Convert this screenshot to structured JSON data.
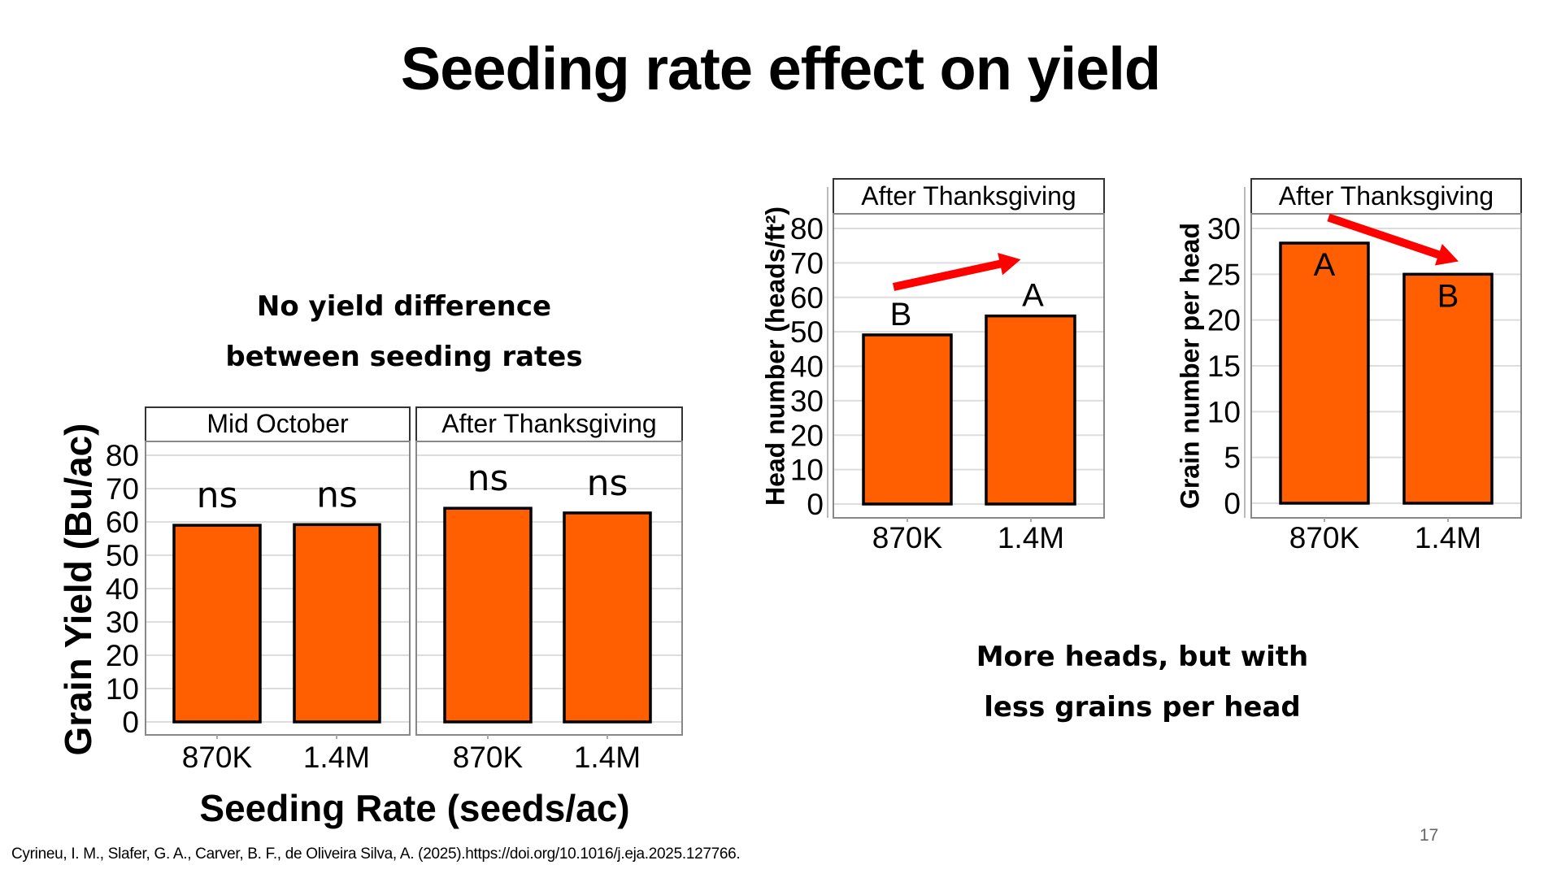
{
  "slide": {
    "title": "Seeding rate effect on yield",
    "callout_left": [
      "No yield difference",
      "between seeding rates"
    ],
    "callout_right": [
      "More heads, but with",
      "less grains per head"
    ],
    "citation": "Cyrineu, I. M., Slafer, G. A., Carver, B. F., de Oliveira Silva, A. (2025).https://doi.org/10.1016/j.eja.2025.127766.",
    "page_number": "17"
  },
  "colors": {
    "bar_fill": "#FF5F00",
    "bar_stroke": "#000000",
    "grid": "#DDDDDD",
    "panel_border": "#555555",
    "arrow": "#FF0000"
  },
  "chart_data": [
    {
      "type": "bar",
      "id": "grain-yield",
      "title": "",
      "xlabel": "Seeding Rate (seeds/ac)",
      "ylabel": "Grain Yield (Bu/ac)",
      "ylim": [
        0,
        80
      ],
      "yticks": [
        0,
        10,
        20,
        30,
        40,
        50,
        60,
        70,
        80
      ],
      "grid": true,
      "categories": [
        "870K",
        "1.4M"
      ],
      "facets": [
        {
          "name": "Mid October",
          "values": [
            59.0,
            59.2
          ],
          "labels": [
            "ns",
            "ns"
          ]
        },
        {
          "name": "After Thanksgiving",
          "values": [
            64.1,
            62.7
          ],
          "labels": [
            "ns",
            "ns"
          ]
        }
      ]
    },
    {
      "type": "bar",
      "id": "head-number",
      "title": "",
      "xlabel": "",
      "ylabel": "Head number (heads/ft²)",
      "ylim": [
        0,
        80
      ],
      "yticks": [
        0,
        10,
        20,
        30,
        40,
        50,
        60,
        70,
        80
      ],
      "grid": true,
      "categories": [
        "870K",
        "1.4M"
      ],
      "facets": [
        {
          "name": "After Thanksgiving",
          "values": [
            49.1,
            54.6
          ],
          "labels": [
            "B",
            "A"
          ]
        }
      ],
      "annotation": {
        "type": "arrow",
        "direction": "increase",
        "from_category": "870K",
        "to_category": "1.4M",
        "from_y": 63,
        "to_y": 71
      }
    },
    {
      "type": "bar",
      "id": "grain-per-head",
      "title": "",
      "xlabel": "",
      "ylabel": "Grain number per head",
      "ylim": [
        0,
        30
      ],
      "yticks": [
        0,
        5,
        10,
        15,
        20,
        25,
        30
      ],
      "grid": true,
      "categories": [
        "870K",
        "1.4M"
      ],
      "facets": [
        {
          "name": "After Thanksgiving",
          "values": [
            28.4,
            25.0
          ],
          "labels": [
            "A",
            "B"
          ]
        }
      ],
      "annotation": {
        "type": "arrow",
        "direction": "decrease",
        "from_category": "870K",
        "to_category": "1.4M",
        "from_y": 31.2,
        "to_y": 26.4
      }
    }
  ]
}
